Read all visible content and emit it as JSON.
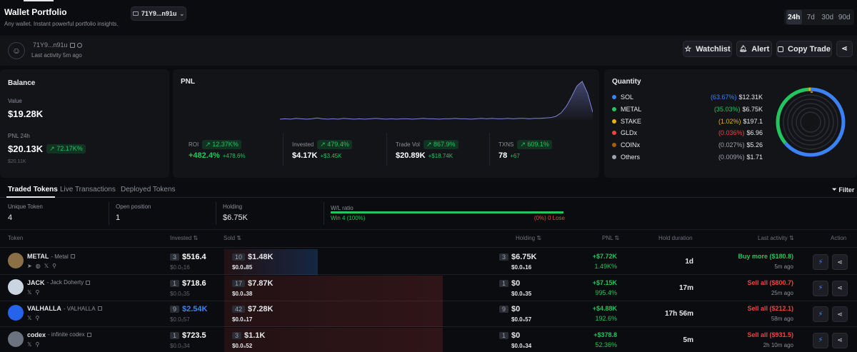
{
  "header": {
    "title": "Wallet Portfolio",
    "subtitle": "Any wallet. Instant powerful portfolio insights.",
    "wallet_selector": "71Y9...n91u",
    "timeframes": [
      "24h",
      "7d",
      "30d",
      "90d"
    ],
    "active_timeframe": "24h"
  },
  "profile": {
    "address": "71Y9...n91u",
    "last_activity": "Last activity 5m ago",
    "watchlist_label": "Watchlist",
    "alert_label": "Alert",
    "copy_trade_label": "Copy Trade"
  },
  "balance": {
    "title": "Balance",
    "value_label": "Value",
    "value": "$19.28K",
    "pnl_label": "PNL 24h",
    "pnl_value": "$20.13K",
    "pnl_pct": "72.17K%",
    "pnl_sub": "$20.11K"
  },
  "pnl": {
    "title": "PNL",
    "stats": [
      {
        "label": "ROI",
        "pill": "12.37K%",
        "value": "+482.4%",
        "sub": "+478.6%"
      },
      {
        "label": "Invested",
        "pill": "479.4%",
        "value": "$4.17K",
        "sub": "+$3.45K"
      },
      {
        "label": "Trade Vol",
        "pill": "867.9%",
        "value": "$20.89K",
        "sub": "+$18.74K"
      },
      {
        "label": "TXNS",
        "pill": "609.1%",
        "value": "78",
        "sub": "+67"
      }
    ],
    "chart_data": {
      "type": "area",
      "title": "",
      "xlabel": "",
      "ylabel": "",
      "values": [
        2,
        3,
        2,
        4,
        3,
        2,
        3,
        5,
        3,
        2,
        3,
        2,
        4,
        3,
        2,
        3,
        2,
        3,
        4,
        3,
        2,
        3,
        2,
        3,
        3,
        2,
        3,
        4,
        3,
        3,
        2,
        3,
        3,
        4,
        3,
        3,
        2,
        3,
        4,
        3,
        4,
        3,
        3,
        4,
        3,
        4,
        4,
        3,
        4,
        4,
        5,
        6,
        9,
        18,
        35,
        60,
        88,
        100,
        70,
        20
      ],
      "color": "#7b83d6"
    }
  },
  "quantity": {
    "title": "Quantity",
    "items": [
      {
        "name": "SOL",
        "pct": "(63.67%)",
        "value": "$12.31K",
        "color": "#3b82f6",
        "pct_color": "#3b82f6"
      },
      {
        "name": "METAL",
        "pct": "(35.03%)",
        "value": "$6.75K",
        "color": "#22c55e",
        "pct_color": "#22c55e"
      },
      {
        "name": "STAKE",
        "pct": "(1.02%)",
        "value": "$197.1",
        "color": "#eab308",
        "pct_color": "#eab308"
      },
      {
        "name": "GLDx",
        "pct": "(0.036%)",
        "value": "$6.96",
        "color": "#ef4444",
        "pct_color": "#ef4444"
      },
      {
        "name": "COINx",
        "pct": "(0.027%)",
        "value": "$5.26",
        "color": "#a16207",
        "pct_color": "#a3a3a3"
      },
      {
        "name": "Others",
        "pct": "(0.009%)",
        "value": "$1.71",
        "color": "#9ca3af",
        "pct_color": "#9ca3af"
      }
    ],
    "chart_data": {
      "type": "pie",
      "categories": [
        "SOL",
        "METAL",
        "STAKE",
        "GLDx",
        "COINx",
        "Others"
      ],
      "values": [
        63.67,
        35.03,
        1.02,
        0.036,
        0.027,
        0.009
      ],
      "colors": [
        "#3b82f6",
        "#22c55e",
        "#eab308",
        "#ef4444",
        "#a16207",
        "#9ca3af"
      ]
    }
  },
  "tabs": {
    "items": [
      "Traded Tokens",
      "Live Transactions",
      "Deployed Tokens"
    ],
    "active": "Traded Tokens",
    "filter_label": "Filter"
  },
  "summary": {
    "unique_token_label": "Unique Token",
    "unique_token": "4",
    "open_position_label": "Open position",
    "open_position": "1",
    "holding_label": "Holding",
    "holding": "$6.75K",
    "wl_label": "W/L ratio",
    "win_text": "Win 4 (100%)",
    "lose_text": "(0%) 0 Lose",
    "win_fraction": 1.0
  },
  "table": {
    "headers": {
      "token": "Token",
      "invested": "Invested",
      "sold": "Sold",
      "holding": "Holding",
      "pnl": "PNL",
      "hold_duration": "Hold duration",
      "last_activity": "Last activity",
      "action": "Action"
    },
    "rows": [
      {
        "symbol": "METAL",
        "name": "- Metal",
        "inv_count": "3",
        "invested": "$516.4",
        "inv_price": "$0.0₅16",
        "sold_count": "10",
        "sold": "$1.48K",
        "sold_price": "$0.0₄85",
        "hold_count": "3",
        "holding": "$6.75K",
        "hold_price": "$0.0₅16",
        "pnl": "+$7.72K",
        "pnl_pct": "1.49K%",
        "duration": "1d",
        "last_action": "Buy more ($180.8)",
        "last_action_color": "#22c55e",
        "last_time": "5m ago",
        "sold_fraction": 0.42,
        "sold_tint": "#3b82f6",
        "avatar_color": "#8b6f47"
      },
      {
        "symbol": "JACK",
        "name": "- Jack Doherty",
        "inv_count": "1",
        "invested": "$718.6",
        "inv_price": "$0.0₅35",
        "sold_count": "17",
        "sold": "$7.87K",
        "sold_price": "$0.0₄38",
        "hold_count": "1",
        "holding": "$0",
        "hold_price": "$0.0₅35",
        "pnl": "+$7.15K",
        "pnl_pct": "995.4%",
        "duration": "17m",
        "last_action": "Sell all ($800.7)",
        "last_action_color": "#ef4444",
        "last_time": "25m ago",
        "sold_fraction": 0.98,
        "sold_tint": "#ef4444",
        "avatar_color": "#cbd5e1"
      },
      {
        "symbol": "VALHALLA",
        "name": "- VALHALLA",
        "inv_count": "9",
        "invested": "$2.54K",
        "inv_price": "$0.0₅57",
        "sold_count": "42",
        "sold": "$7.28K",
        "sold_price": "$0.0₄17",
        "hold_count": "9",
        "holding": "$0",
        "hold_price": "$0.0₅57",
        "pnl": "+$4.88K",
        "pnl_pct": "192.6%",
        "duration": "17h 56m",
        "last_action": "Sell all ($212.1)",
        "last_action_color": "#ef4444",
        "last_time": "58m ago",
        "sold_fraction": 0.98,
        "sold_tint": "#ef4444",
        "avatar_color": "#2563eb",
        "invested_color": "#3b82f6"
      },
      {
        "symbol": "codex",
        "name": "- infinite codex",
        "inv_count": "1",
        "invested": "$723.5",
        "inv_price": "$0.0₅34",
        "sold_count": "3",
        "sold": "$1.1K",
        "sold_price": "$0.0₅52",
        "hold_count": "1",
        "holding": "$0",
        "hold_price": "$0.0₅34",
        "pnl": "+$378.8",
        "pnl_pct": "52.36%",
        "duration": "5m",
        "last_action": "Sell all ($931.5)",
        "last_action_color": "#ef4444",
        "last_time": "2h 10m ago",
        "sold_fraction": 0.98,
        "sold_tint": "#ef4444",
        "avatar_color": "#6b7280"
      }
    ]
  }
}
